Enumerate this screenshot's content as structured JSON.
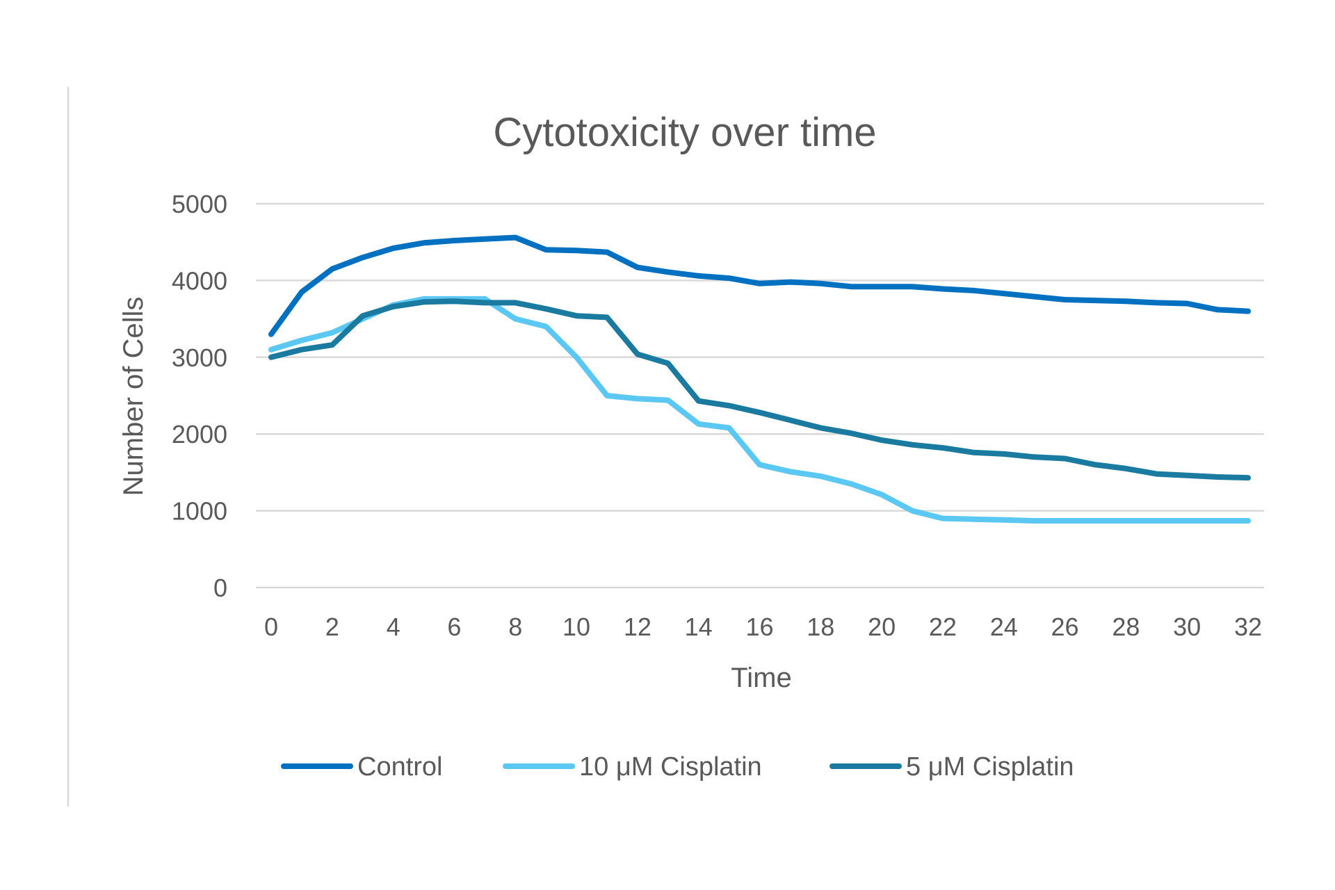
{
  "chart_data": {
    "type": "line",
    "title": "Cytotoxicity over time",
    "xlabel": "Time",
    "ylabel": "Number of Cells",
    "x": [
      0,
      1,
      2,
      3,
      4,
      5,
      6,
      7,
      8,
      9,
      10,
      11,
      12,
      13,
      14,
      15,
      16,
      17,
      18,
      19,
      20,
      21,
      22,
      23,
      24,
      25,
      26,
      27,
      28,
      29,
      30,
      31,
      32
    ],
    "x_ticks": [
      "0",
      "2",
      "4",
      "6",
      "8",
      "10",
      "12",
      "14",
      "16",
      "18",
      "20",
      "22",
      "24",
      "26",
      "28",
      "30",
      "32"
    ],
    "y_ticks": [
      "0",
      "1000",
      "2000",
      "3000",
      "4000",
      "5000"
    ],
    "ylim": [
      0,
      5000
    ],
    "xlim": [
      0,
      32
    ],
    "grid": true,
    "legend_position": "bottom",
    "series": [
      {
        "name": "Control",
        "color": "#0070c0",
        "values": [
          3300,
          3850,
          4150,
          4300,
          4420,
          4490,
          4520,
          4540,
          4560,
          4400,
          4390,
          4370,
          4170,
          4110,
          4060,
          4030,
          3960,
          3980,
          3960,
          3920,
          3920,
          3920,
          3890,
          3870,
          3830,
          3790,
          3750,
          3740,
          3730,
          3710,
          3700,
          3620,
          3600
        ]
      },
      {
        "name": "10 μM Cisplatin",
        "color": "#5ac8f2",
        "values": [
          3100,
          3220,
          3320,
          3500,
          3680,
          3760,
          3760,
          3760,
          3500,
          3400,
          3000,
          2500,
          2460,
          2440,
          2130,
          2080,
          1600,
          1510,
          1450,
          1350,
          1210,
          1000,
          900,
          890,
          880,
          870,
          870,
          870,
          870,
          870,
          870,
          870,
          870
        ]
      },
      {
        "name": "5 μM Cisplatin",
        "color": "#1a7aa0",
        "values": [
          3000,
          3100,
          3160,
          3540,
          3660,
          3720,
          3730,
          3710,
          3710,
          3630,
          3540,
          3520,
          3040,
          2920,
          2430,
          2370,
          2280,
          2180,
          2080,
          2010,
          1920,
          1860,
          1820,
          1760,
          1740,
          1700,
          1680,
          1600,
          1550,
          1480,
          1460,
          1440,
          1430
        ]
      }
    ]
  }
}
